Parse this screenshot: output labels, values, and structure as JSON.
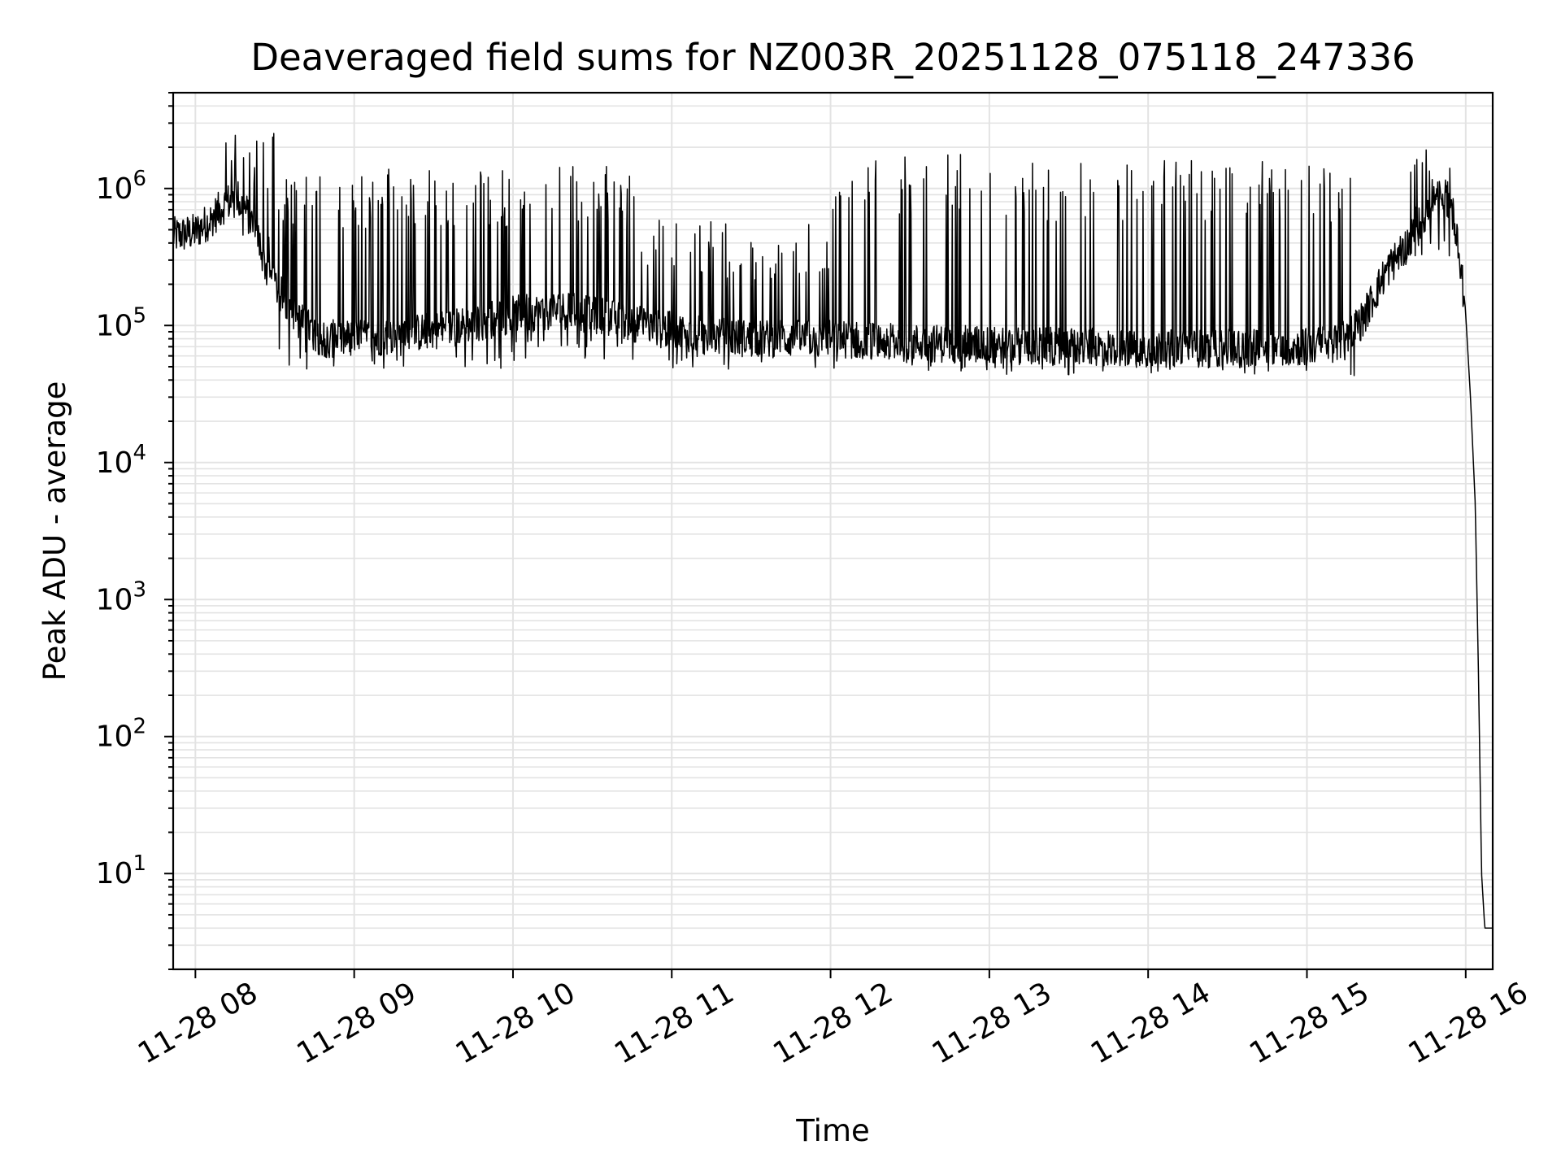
{
  "chart_data": {
    "type": "line",
    "title": "Deaveraged field sums for NZ003R_20251128_075118_247336",
    "xlabel": "Time",
    "ylabel": "Peak ADU - average",
    "yscale": "log",
    "ylim": [
      2,
      5000000
    ],
    "xlim_hours": [
      7.86,
      16.17
    ],
    "grid": "on",
    "x_ticks": [
      {
        "value": 8,
        "label": "11-28 08"
      },
      {
        "value": 9,
        "label": "11-28 09"
      },
      {
        "value": 10,
        "label": "11-28 10"
      },
      {
        "value": 11,
        "label": "11-28 11"
      },
      {
        "value": 12,
        "label": "11-28 12"
      },
      {
        "value": 13,
        "label": "11-28 13"
      },
      {
        "value": 14,
        "label": "11-28 14"
      },
      {
        "value": 15,
        "label": "11-28 15"
      },
      {
        "value": 16,
        "label": "11-28 16"
      }
    ],
    "y_ticks": [
      {
        "value": 10,
        "base": "10",
        "exp": "1"
      },
      {
        "value": 100,
        "base": "10",
        "exp": "2"
      },
      {
        "value": 1000,
        "base": "10",
        "exp": "3"
      },
      {
        "value": 10000,
        "base": "10",
        "exp": "4"
      },
      {
        "value": 100000,
        "base": "10",
        "exp": "5"
      },
      {
        "value": 1000000,
        "base": "10",
        "exp": "6"
      }
    ],
    "series": [
      {
        "name": "Peak ADU - average",
        "color": "#000000",
        "baseline": [
          [
            7.86,
            450000
          ],
          [
            8.0,
            480000
          ],
          [
            8.1,
            600000
          ],
          [
            8.2,
            800000
          ],
          [
            8.3,
            750000
          ],
          [
            8.38,
            500000
          ],
          [
            8.45,
            250000
          ],
          [
            8.55,
            160000
          ],
          [
            8.65,
            110000
          ],
          [
            8.8,
            80000
          ],
          [
            9.0,
            80000
          ],
          [
            9.3,
            85000
          ],
          [
            9.7,
            100000
          ],
          [
            10.0,
            120000
          ],
          [
            10.3,
            130000
          ],
          [
            10.6,
            115000
          ],
          [
            10.9,
            95000
          ],
          [
            11.2,
            85000
          ],
          [
            11.5,
            80000
          ],
          [
            12.0,
            80000
          ],
          [
            12.5,
            75000
          ],
          [
            13.0,
            72000
          ],
          [
            13.5,
            70000
          ],
          [
            14.0,
            68000
          ],
          [
            14.5,
            68000
          ],
          [
            15.0,
            70000
          ],
          [
            15.2,
            75000
          ],
          [
            15.35,
            110000
          ],
          [
            15.5,
            250000
          ],
          [
            15.65,
            420000
          ],
          [
            15.75,
            650000
          ],
          [
            15.85,
            900000
          ],
          [
            15.9,
            800000
          ],
          [
            15.95,
            450000
          ],
          [
            16.0,
            120000
          ],
          [
            16.03,
            30000
          ],
          [
            16.06,
            5000
          ],
          [
            16.08,
            300
          ],
          [
            16.1,
            10
          ],
          [
            16.12,
            4
          ],
          [
            16.17,
            4
          ]
        ],
        "spike_bursts": [
          {
            "from": 8.1,
            "to": 8.5,
            "high": 2800000,
            "low": 350000
          },
          {
            "from": 8.5,
            "to": 10.0,
            "high": 1400000,
            "low": 48000
          },
          {
            "from": 10.0,
            "to": 10.8,
            "high": 1450000,
            "low": 55000
          },
          {
            "from": 10.8,
            "to": 12.0,
            "high": 600000,
            "low": 48000
          },
          {
            "from": 12.0,
            "to": 13.0,
            "high": 1800000,
            "low": 45000
          },
          {
            "from": 13.0,
            "to": 15.3,
            "high": 1600000,
            "low": 43000
          },
          {
            "from": 15.6,
            "to": 15.95,
            "high": 2000000,
            "low": 300000
          }
        ]
      }
    ]
  }
}
